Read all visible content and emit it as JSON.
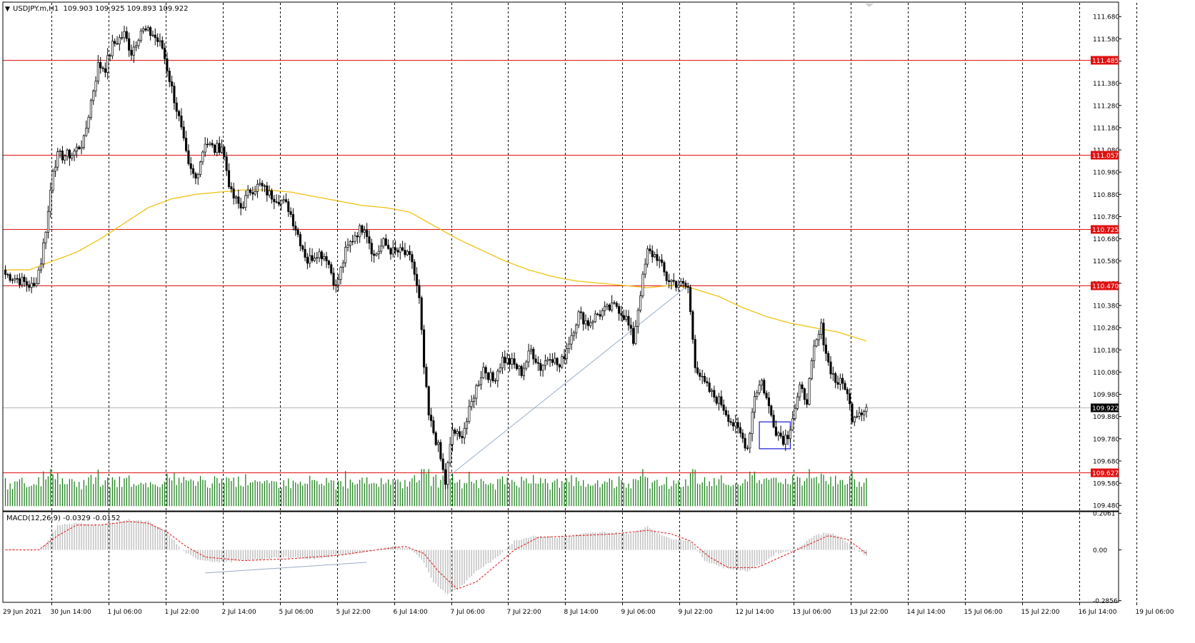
{
  "header": {
    "arrow": "▼",
    "title": "USDJPY.m,H1  109.903 109.925 109.893 109.922"
  },
  "macd_panel": {
    "label": "MACD(12,26,9) -0.0329 -0.0152"
  },
  "chart_data": [
    {
      "type": "candlestick",
      "symbol": "USDJPY.m",
      "timeframe": "H1",
      "ohlc_last": {
        "open": 109.903,
        "high": 109.925,
        "low": 109.893,
        "close": 109.922
      },
      "current_price": {
        "value": 109.922,
        "label": "109.922"
      },
      "y_range": [
        109.455,
        111.745
      ],
      "y_ticks": [
        "111.680",
        "111.580",
        "111.480",
        "111.380",
        "111.280",
        "111.180",
        "111.080",
        "110.980",
        "110.880",
        "110.780",
        "110.680",
        "110.580",
        "110.480",
        "110.380",
        "110.280",
        "110.180",
        "110.080",
        "109.980",
        "109.880",
        "109.780",
        "109.680",
        "109.580",
        "109.480"
      ],
      "x_ticks": [
        "29 Jun 2021",
        "30 Jun 14:00",
        "1 Jul 06:00",
        "1 Jul 22:00",
        "2 Jul 14:00",
        "5 Jul 06:00",
        "5 Jul 22:00",
        "6 Jul 14:00",
        "7 Jul 06:00",
        "7 Jul 22:00",
        "8 Jul 14:00",
        "9 Jul 06:00",
        "9 Jul 22:00",
        "12 Jul 14:00",
        "13 Jul 06:00",
        "13 Jul 22:00",
        "14 Jul 14:00",
        "15 Jul 06:00",
        "15 Jul 22:00",
        "16 Jul 14:00",
        "19 Jul 06:00"
      ],
      "horizontal_levels": [
        {
          "value": 111.485,
          "label": "111.485"
        },
        {
          "value": 111.057,
          "label": "111.057"
        },
        {
          "value": 110.725,
          "label": "110.725"
        },
        {
          "value": 110.47,
          "label": "110.470"
        },
        {
          "value": 109.627,
          "label": "109.627"
        }
      ],
      "anchors": [
        [
          0,
          110.52
        ],
        [
          5,
          110.5
        ],
        [
          12,
          110.46
        ],
        [
          15,
          110.58
        ],
        [
          18,
          110.8
        ],
        [
          20,
          111.0
        ],
        [
          22,
          111.05
        ],
        [
          28,
          111.06
        ],
        [
          33,
          111.12
        ],
        [
          36,
          111.3
        ],
        [
          39,
          111.46
        ],
        [
          42,
          111.45
        ],
        [
          45,
          111.55
        ],
        [
          50,
          111.6
        ],
        [
          53,
          111.52
        ],
        [
          57,
          111.62
        ],
        [
          62,
          111.6
        ],
        [
          66,
          111.54
        ],
        [
          69,
          111.4
        ],
        [
          73,
          111.22
        ],
        [
          77,
          111.0
        ],
        [
          80,
          110.95
        ],
        [
          84,
          111.12
        ],
        [
          88,
          111.08
        ],
        [
          91,
          111.1
        ],
        [
          95,
          110.88
        ],
        [
          99,
          110.82
        ],
        [
          103,
          110.9
        ],
        [
          107,
          110.92
        ],
        [
          111,
          110.88
        ],
        [
          115,
          110.86
        ],
        [
          119,
          110.82
        ],
        [
          123,
          110.7
        ],
        [
          127,
          110.58
        ],
        [
          131,
          110.62
        ],
        [
          135,
          110.6
        ],
        [
          139,
          110.46
        ],
        [
          143,
          110.62
        ],
        [
          147,
          110.7
        ],
        [
          151,
          110.74
        ],
        [
          155,
          110.6
        ],
        [
          159,
          110.66
        ],
        [
          163,
          110.62
        ],
        [
          167,
          110.62
        ],
        [
          171,
          110.58
        ],
        [
          174,
          110.4
        ],
        [
          176,
          110.1
        ],
        [
          178,
          109.88
        ],
        [
          182,
          109.74
        ],
        [
          185,
          109.58
        ],
        [
          188,
          109.82
        ],
        [
          191,
          109.78
        ],
        [
          194,
          109.86
        ],
        [
          197,
          109.98
        ],
        [
          201,
          110.1
        ],
        [
          205,
          110.04
        ],
        [
          209,
          110.14
        ],
        [
          213,
          110.12
        ],
        [
          217,
          110.08
        ],
        [
          221,
          110.18
        ],
        [
          225,
          110.1
        ],
        [
          229,
          110.16
        ],
        [
          233,
          110.1
        ],
        [
          237,
          110.22
        ],
        [
          241,
          110.34
        ],
        [
          245,
          110.3
        ],
        [
          249,
          110.34
        ],
        [
          253,
          110.36
        ],
        [
          257,
          110.38
        ],
        [
          261,
          110.32
        ],
        [
          264,
          110.22
        ],
        [
          267,
          110.44
        ],
        [
          270,
          110.62
        ],
        [
          274,
          110.6
        ],
        [
          278,
          110.5
        ],
        [
          282,
          110.48
        ],
        [
          287,
          110.46
        ],
        [
          290,
          110.12
        ],
        [
          293,
          110.04
        ],
        [
          297,
          109.98
        ],
        [
          301,
          109.94
        ],
        [
          305,
          109.86
        ],
        [
          309,
          109.8
        ],
        [
          312,
          109.74
        ],
        [
          315,
          109.98
        ],
        [
          318,
          110.04
        ],
        [
          321,
          109.92
        ],
        [
          324,
          109.82
        ],
        [
          327,
          109.78
        ],
        [
          329,
          109.8
        ],
        [
          331,
          109.88
        ],
        [
          334,
          110.0
        ],
        [
          337,
          109.96
        ],
        [
          340,
          110.18
        ],
        [
          343,
          110.28
        ],
        [
          346,
          110.12
        ],
        [
          349,
          110.04
        ],
        [
          353,
          110.02
        ],
        [
          356,
          109.88
        ],
        [
          358,
          109.9
        ],
        [
          362,
          109.92
        ]
      ],
      "series": [
        {
          "name": "MA",
          "color": "#f2c211",
          "points": [
            [
              0,
              110.54
            ],
            [
              10,
              110.54
            ],
            [
              20,
              110.58
            ],
            [
              30,
              110.62
            ],
            [
              40,
              110.68
            ],
            [
              50,
              110.75
            ],
            [
              60,
              110.82
            ],
            [
              70,
              110.86
            ],
            [
              80,
              110.88
            ],
            [
              90,
              110.89
            ],
            [
              100,
              110.9
            ],
            [
              110,
              110.9
            ],
            [
              120,
              110.89
            ],
            [
              130,
              110.87
            ],
            [
              140,
              110.85
            ],
            [
              150,
              110.83
            ],
            [
              160,
              110.82
            ],
            [
              170,
              110.8
            ],
            [
              180,
              110.74
            ],
            [
              190,
              110.68
            ],
            [
              200,
              110.63
            ],
            [
              210,
              110.58
            ],
            [
              220,
              110.54
            ],
            [
              230,
              110.51
            ],
            [
              240,
              110.49
            ],
            [
              250,
              110.48
            ],
            [
              260,
              110.47
            ],
            [
              270,
              110.46
            ],
            [
              280,
              110.47
            ],
            [
              288,
              110.46
            ],
            [
              300,
              110.42
            ],
            [
              310,
              110.37
            ],
            [
              320,
              110.33
            ],
            [
              330,
              110.3
            ],
            [
              340,
              110.28
            ],
            [
              350,
              110.26
            ],
            [
              362,
              110.22
            ]
          ]
        }
      ],
      "trendline": {
        "color": "#98acc6",
        "from": [
          184,
          109.59
        ],
        "to": [
          287,
          110.47
        ]
      },
      "rectangle": {
        "color": "#1a1ad6",
        "x": [
          317,
          330
        ],
        "y": [
          109.735,
          109.856
        ]
      },
      "volume": {
        "color": "#0f7a0f",
        "scale_max": 1
      }
    },
    {
      "type": "histogram",
      "name": "MACD(12,26,9)",
      "values": {
        "macd": -0.0329,
        "signal": -0.0152
      },
      "y_ticks": [
        "0.2061",
        "0.00",
        "-0.2856"
      ],
      "y_range": [
        -0.295,
        0.215
      ],
      "histogram_color": "#c0c0c0",
      "signal_color": "#e01010",
      "macd_anchors": [
        [
          0,
          0.0
        ],
        [
          14,
          0.0
        ],
        [
          18,
          0.05
        ],
        [
          22,
          0.14
        ],
        [
          30,
          0.15
        ],
        [
          40,
          0.14
        ],
        [
          48,
          0.16
        ],
        [
          52,
          0.17
        ],
        [
          60,
          0.16
        ],
        [
          68,
          0.1
        ],
        [
          74,
          0.0
        ],
        [
          80,
          -0.05
        ],
        [
          90,
          -0.07
        ],
        [
          100,
          -0.06
        ],
        [
          110,
          -0.05
        ],
        [
          120,
          -0.04
        ],
        [
          130,
          -0.05
        ],
        [
          140,
          -0.03
        ],
        [
          148,
          -0.02
        ],
        [
          156,
          0.0
        ],
        [
          164,
          0.02
        ],
        [
          170,
          0.01
        ],
        [
          175,
          -0.05
        ],
        [
          180,
          -0.18
        ],
        [
          186,
          -0.25
        ],
        [
          192,
          -0.2
        ],
        [
          198,
          -0.12
        ],
        [
          206,
          -0.05
        ],
        [
          214,
          0.05
        ],
        [
          222,
          0.08
        ],
        [
          232,
          0.07
        ],
        [
          242,
          0.09
        ],
        [
          252,
          0.1
        ],
        [
          262,
          0.09
        ],
        [
          270,
          0.13
        ],
        [
          278,
          0.07
        ],
        [
          288,
          0.05
        ],
        [
          294,
          -0.06
        ],
        [
          302,
          -0.1
        ],
        [
          312,
          -0.12
        ],
        [
          318,
          -0.08
        ],
        [
          324,
          -0.02
        ],
        [
          332,
          0.0
        ],
        [
          340,
          0.08
        ],
        [
          346,
          0.1
        ],
        [
          352,
          0.06
        ],
        [
          358,
          0.0
        ],
        [
          362,
          -0.03
        ]
      ],
      "signal_anchors": [
        [
          0,
          0.0
        ],
        [
          14,
          0.0
        ],
        [
          22,
          0.08
        ],
        [
          30,
          0.14
        ],
        [
          40,
          0.14
        ],
        [
          52,
          0.16
        ],
        [
          60,
          0.15
        ],
        [
          68,
          0.1
        ],
        [
          76,
          0.02
        ],
        [
          84,
          -0.04
        ],
        [
          100,
          -0.06
        ],
        [
          120,
          -0.05
        ],
        [
          140,
          -0.03
        ],
        [
          156,
          0.0
        ],
        [
          168,
          0.02
        ],
        [
          176,
          -0.02
        ],
        [
          182,
          -0.12
        ],
        [
          190,
          -0.22
        ],
        [
          198,
          -0.18
        ],
        [
          206,
          -0.09
        ],
        [
          214,
          0.0
        ],
        [
          224,
          0.07
        ],
        [
          240,
          0.08
        ],
        [
          256,
          0.09
        ],
        [
          270,
          0.11
        ],
        [
          280,
          0.09
        ],
        [
          288,
          0.05
        ],
        [
          296,
          -0.04
        ],
        [
          304,
          -0.1
        ],
        [
          316,
          -0.1
        ],
        [
          326,
          -0.04
        ],
        [
          336,
          0.02
        ],
        [
          346,
          0.08
        ],
        [
          354,
          0.06
        ],
        [
          362,
          -0.02
        ]
      ],
      "trendline": {
        "color": "#98acc6",
        "from": [
          84,
          -0.13
        ],
        "to": [
          152,
          -0.07
        ]
      }
    }
  ]
}
